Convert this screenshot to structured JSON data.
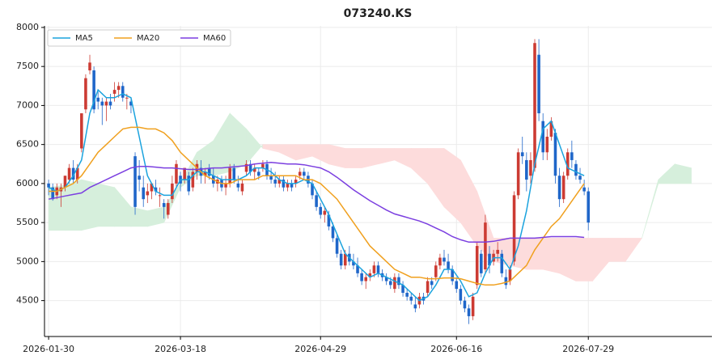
{
  "chart_data": {
    "type": "candlestick",
    "title": "073240.KS",
    "up_color": "#cc3b33",
    "down_color": "#1f66c9",
    "cloud_up_color": "#d6efdc",
    "cloud_down_color": "#fddcdc",
    "grid": true,
    "legend": "upper left",
    "xlim": [
      -1,
      161
    ],
    "xticks": [
      {
        "value": 0,
        "label": "2026-01-30"
      },
      {
        "value": 32,
        "label": "2026-03-18"
      },
      {
        "value": 66,
        "label": "2026-04-29"
      },
      {
        "value": 99,
        "label": "2026-06-16"
      },
      {
        "value": 131,
        "label": "2026-07-29"
      }
    ],
    "ylim": [
      4040,
      8020
    ],
    "yticks": [
      4500,
      5000,
      5500,
      6000,
      6500,
      7000,
      7500,
      8000
    ],
    "ohlc": [
      [
        6000,
        6050,
        5850,
        5950
      ],
      [
        5950,
        6000,
        5780,
        5800
      ],
      [
        5850,
        6000,
        5800,
        5950
      ],
      [
        5900,
        6000,
        5700,
        5950
      ],
      [
        5950,
        6100,
        5900,
        6100
      ],
      [
        6050,
        6250,
        6000,
        6200
      ],
      [
        6200,
        6300,
        6000,
        6050
      ],
      [
        6050,
        6250,
        6000,
        6200
      ],
      [
        6450,
        6900,
        6400,
        6900
      ],
      [
        6950,
        7400,
        6900,
        7350
      ],
      [
        7450,
        7650,
        7400,
        7550
      ],
      [
        7450,
        7500,
        6900,
        6950
      ],
      [
        7100,
        7200,
        6950,
        7050
      ],
      [
        7050,
        7100,
        6750,
        7000
      ],
      [
        7000,
        7100,
        6800,
        7050
      ],
      [
        7050,
        7150,
        6950,
        7000
      ],
      [
        7150,
        7300,
        7050,
        7200
      ],
      [
        7200,
        7300,
        7100,
        7250
      ],
      [
        7250,
        7300,
        7050,
        7100
      ],
      [
        7100,
        7150,
        6950,
        7100
      ],
      [
        7050,
        7100,
        6900,
        7000
      ],
      [
        6350,
        6400,
        5600,
        5700
      ],
      [
        6100,
        6300,
        5900,
        6050
      ],
      [
        5950,
        6100,
        5700,
        5800
      ],
      [
        5850,
        6000,
        5750,
        5900
      ],
      [
        5900,
        6000,
        5800,
        6000
      ],
      [
        5950,
        6050,
        5850,
        5900
      ],
      [
        5850,
        5950,
        5700,
        5850
      ],
      [
        5750,
        5800,
        5550,
        5700
      ],
      [
        5600,
        5800,
        5550,
        5750
      ],
      [
        5800,
        6100,
        5750,
        6000
      ],
      [
        6000,
        6300,
        5950,
        6250
      ],
      [
        6100,
        6150,
        5900,
        6000
      ],
      [
        6050,
        6200,
        6000,
        6200
      ],
      [
        6100,
        6150,
        5850,
        5900
      ],
      [
        5950,
        6200,
        5900,
        6150
      ],
      [
        6150,
        6300,
        6050,
        6250
      ],
      [
        6200,
        6300,
        6000,
        6100
      ],
      [
        6100,
        6200,
        6000,
        6150
      ],
      [
        6200,
        6250,
        6050,
        6100
      ],
      [
        6100,
        6200,
        5950,
        6000
      ],
      [
        6000,
        6100,
        5900,
        6050
      ],
      [
        6050,
        6100,
        5900,
        5950
      ],
      [
        5950,
        6100,
        5850,
        6000
      ],
      [
        6000,
        6250,
        5950,
        6200
      ],
      [
        6200,
        6250,
        6000,
        6050
      ],
      [
        6000,
        6100,
        5900,
        5950
      ],
      [
        5900,
        6050,
        5850,
        6000
      ],
      [
        6150,
        6300,
        6100,
        6250
      ],
      [
        6250,
        6300,
        6100,
        6150
      ],
      [
        6150,
        6250,
        6050,
        6200
      ],
      [
        6150,
        6200,
        6050,
        6100
      ],
      [
        6200,
        6300,
        6150,
        6250
      ],
      [
        6250,
        6300,
        6050,
        6100
      ],
      [
        6100,
        6200,
        6000,
        6050
      ],
      [
        6050,
        6150,
        5950,
        6000
      ],
      [
        6000,
        6100,
        5950,
        6050
      ],
      [
        6050,
        6100,
        5900,
        5950
      ],
      [
        5950,
        6050,
        5900,
        6000
      ],
      [
        6000,
        6050,
        5900,
        5950
      ],
      [
        6000,
        6100,
        5950,
        6050
      ],
      [
        6100,
        6200,
        6050,
        6150
      ],
      [
        6150,
        6200,
        6050,
        6100
      ],
      [
        6100,
        6150,
        5950,
        6000
      ],
      [
        6000,
        6050,
        5800,
        5850
      ],
      [
        5850,
        5900,
        5650,
        5700
      ],
      [
        5700,
        5750,
        5550,
        5600
      ],
      [
        5600,
        5700,
        5500,
        5650
      ],
      [
        5600,
        5650,
        5400,
        5450
      ],
      [
        5450,
        5500,
        5250,
        5300
      ],
      [
        5300,
        5350,
        5050,
        5100
      ],
      [
        5100,
        5150,
        4900,
        4950
      ],
      [
        4950,
        5150,
        4900,
        5100
      ],
      [
        5100,
        5200,
        4950,
        5000
      ],
      [
        5000,
        5100,
        4900,
        4950
      ],
      [
        4950,
        5050,
        4800,
        4850
      ],
      [
        4850,
        4900,
        4700,
        4750
      ],
      [
        4750,
        4850,
        4650,
        4800
      ],
      [
        4800,
        4900,
        4750,
        4850
      ],
      [
        4850,
        5000,
        4800,
        4950
      ],
      [
        4950,
        5000,
        4800,
        4850
      ],
      [
        4850,
        4900,
        4750,
        4800
      ],
      [
        4800,
        4850,
        4700,
        4750
      ],
      [
        4750,
        4800,
        4650,
        4700
      ],
      [
        4650,
        4850,
        4600,
        4800
      ],
      [
        4800,
        4850,
        4650,
        4700
      ],
      [
        4700,
        4750,
        4550,
        4600
      ],
      [
        4600,
        4650,
        4500,
        4550
      ],
      [
        4550,
        4600,
        4450,
        4500
      ],
      [
        4450,
        4550,
        4350,
        4400
      ],
      [
        4450,
        4600,
        4400,
        4550
      ],
      [
        4550,
        4600,
        4450,
        4500
      ],
      [
        4600,
        4800,
        4550,
        4750
      ],
      [
        4750,
        4800,
        4650,
        4700
      ],
      [
        4800,
        5000,
        4750,
        4950
      ],
      [
        4950,
        5100,
        4900,
        5050
      ],
      [
        5050,
        5150,
        4950,
        5000
      ],
      [
        5000,
        5100,
        4850,
        4900
      ],
      [
        4900,
        4950,
        4700,
        4750
      ],
      [
        4750,
        4800,
        4600,
        4650
      ],
      [
        4650,
        4700,
        4450,
        4500
      ],
      [
        4500,
        4550,
        4350,
        4400
      ],
      [
        4400,
        4450,
        4200,
        4300
      ],
      [
        4300,
        4600,
        4250,
        4550
      ],
      [
        4700,
        5250,
        4650,
        5200
      ],
      [
        5100,
        5150,
        4800,
        4850
      ],
      [
        4900,
        5600,
        4850,
        5500
      ],
      [
        5100,
        5200,
        4850,
        4950
      ],
      [
        5000,
        5150,
        4950,
        5100
      ],
      [
        5100,
        5250,
        5000,
        5150
      ],
      [
        5100,
        5150,
        4800,
        4850
      ],
      [
        4800,
        4900,
        4650,
        4700
      ],
      [
        4750,
        4950,
        4700,
        4900
      ],
      [
        5000,
        5900,
        4950,
        5850
      ],
      [
        5850,
        6450,
        5800,
        6400
      ],
      [
        6400,
        6600,
        6250,
        6350
      ],
      [
        6300,
        6400,
        5900,
        6050
      ],
      [
        6100,
        6400,
        6000,
        6300
      ],
      [
        6200,
        7850,
        6150,
        7800
      ],
      [
        7650,
        7850,
        6800,
        6900
      ],
      [
        6800,
        6900,
        6300,
        6400
      ],
      [
        6400,
        6700,
        6300,
        6600
      ],
      [
        6600,
        6850,
        6550,
        6800
      ],
      [
        6650,
        6700,
        6000,
        6100
      ],
      [
        6100,
        6200,
        5700,
        5800
      ],
      [
        5800,
        6150,
        5750,
        6100
      ],
      [
        6100,
        6450,
        6050,
        6400
      ],
      [
        6400,
        6550,
        6200,
        6300
      ],
      [
        6250,
        6300,
        6050,
        6100
      ],
      [
        6100,
        6200,
        6000,
        6050
      ],
      [
        5950,
        6050,
        5850,
        5900
      ],
      [
        5900,
        5950,
        5400,
        5500
      ]
    ],
    "lines": {
      "x": [
        0,
        2,
        4,
        6,
        8,
        10,
        12,
        14,
        16,
        18,
        20,
        22,
        24,
        26,
        28,
        30,
        32,
        34,
        36,
        38,
        40,
        42,
        44,
        46,
        48,
        50,
        52,
        54,
        56,
        58,
        60,
        62,
        64,
        66,
        68,
        70,
        72,
        74,
        76,
        78,
        80,
        82,
        84,
        86,
        88,
        90,
        92,
        94,
        96,
        98,
        100,
        102,
        104,
        106,
        108,
        110,
        112,
        114,
        116,
        118,
        120,
        122,
        124,
        126,
        128,
        130
      ],
      "series": [
        {
          "name": "MA5",
          "color": "#1ba3de",
          "values": [
            5950,
            5900,
            5950,
            6100,
            6300,
            6900,
            7200,
            7100,
            7100,
            7150,
            7100,
            6600,
            6100,
            5900,
            5850,
            5850,
            6050,
            6050,
            6150,
            6150,
            6100,
            6050,
            6050,
            6050,
            6100,
            6200,
            6200,
            6150,
            6050,
            6000,
            6000,
            6050,
            6000,
            5800,
            5600,
            5350,
            5100,
            5000,
            4900,
            4800,
            4850,
            4800,
            4750,
            4700,
            4600,
            4500,
            4550,
            4700,
            4900,
            4900,
            4750,
            4550,
            4600,
            4850,
            5050,
            5050,
            4900,
            5200,
            5650,
            6250,
            6700,
            6800,
            6500,
            6200,
            6150,
            6100
          ]
        },
        {
          "name": "MA20",
          "color": "#f0a01e",
          "values": [
            5900,
            5900,
            5950,
            6000,
            6100,
            6250,
            6400,
            6500,
            6600,
            6700,
            6720,
            6720,
            6700,
            6700,
            6650,
            6550,
            6400,
            6300,
            6200,
            6100,
            6050,
            6000,
            6000,
            6050,
            6050,
            6050,
            6100,
            6100,
            6100,
            6100,
            6100,
            6050,
            6050,
            6000,
            5900,
            5800,
            5650,
            5500,
            5350,
            5200,
            5100,
            5000,
            4900,
            4850,
            4800,
            4800,
            4780,
            4780,
            4790,
            4790,
            4780,
            4750,
            4720,
            4700,
            4700,
            4720,
            4750,
            4850,
            4950,
            5150,
            5300,
            5450,
            5550,
            5700,
            5850,
            6000
          ]
        },
        {
          "name": "MA60",
          "color": "#7b3fe0",
          "values": [
            5800,
            5820,
            5840,
            5860,
            5880,
            5950,
            6000,
            6050,
            6100,
            6150,
            6200,
            6220,
            6220,
            6210,
            6200,
            6200,
            6190,
            6180,
            6180,
            6190,
            6200,
            6200,
            6210,
            6220,
            6230,
            6250,
            6260,
            6270,
            6260,
            6250,
            6250,
            6240,
            6220,
            6200,
            6150,
            6080,
            6000,
            5920,
            5850,
            5780,
            5720,
            5660,
            5610,
            5580,
            5550,
            5520,
            5480,
            5430,
            5380,
            5320,
            5280,
            5250,
            5250,
            5250,
            5260,
            5280,
            5300,
            5300,
            5300,
            5300,
            5310,
            5320,
            5320,
            5320,
            5320,
            5310
          ]
        }
      ]
    },
    "cloud": {
      "x": [
        0,
        4,
        8,
        12,
        16,
        20,
        24,
        28,
        32,
        36,
        40,
        44,
        48,
        52,
        56,
        60,
        64,
        68,
        72,
        76,
        80,
        84,
        88,
        92,
        96,
        100,
        104,
        108,
        112,
        116,
        120,
        124,
        128,
        132,
        136,
        140,
        144,
        148,
        152,
        156
      ],
      "span_a": [
        5950,
        5980,
        6050,
        6000,
        5950,
        5700,
        5650,
        5700,
        6000,
        6400,
        6550,
        6900,
        6700,
        6450,
        6400,
        6300,
        6350,
        6250,
        6200,
        6200,
        6250,
        6300,
        6200,
        6000,
        5700,
        5500,
        5200,
        5000,
        4950,
        4900,
        4900,
        4850,
        4750,
        4750,
        5000,
        5000,
        5300,
        6050,
        6250,
        6200
      ],
      "span_b": [
        5400,
        5400,
        5400,
        5450,
        5450,
        5450,
        5450,
        5500,
        5950,
        6100,
        6100,
        6150,
        6250,
        6500,
        6500,
        6500,
        6500,
        6500,
        6450,
        6450,
        6450,
        6450,
        6450,
        6450,
        6450,
        6300,
        5900,
        5300,
        5300,
        5300,
        5300,
        5300,
        5300,
        5300,
        5300,
        5300,
        5300,
        6000,
        6000,
        6000
      ]
    }
  }
}
